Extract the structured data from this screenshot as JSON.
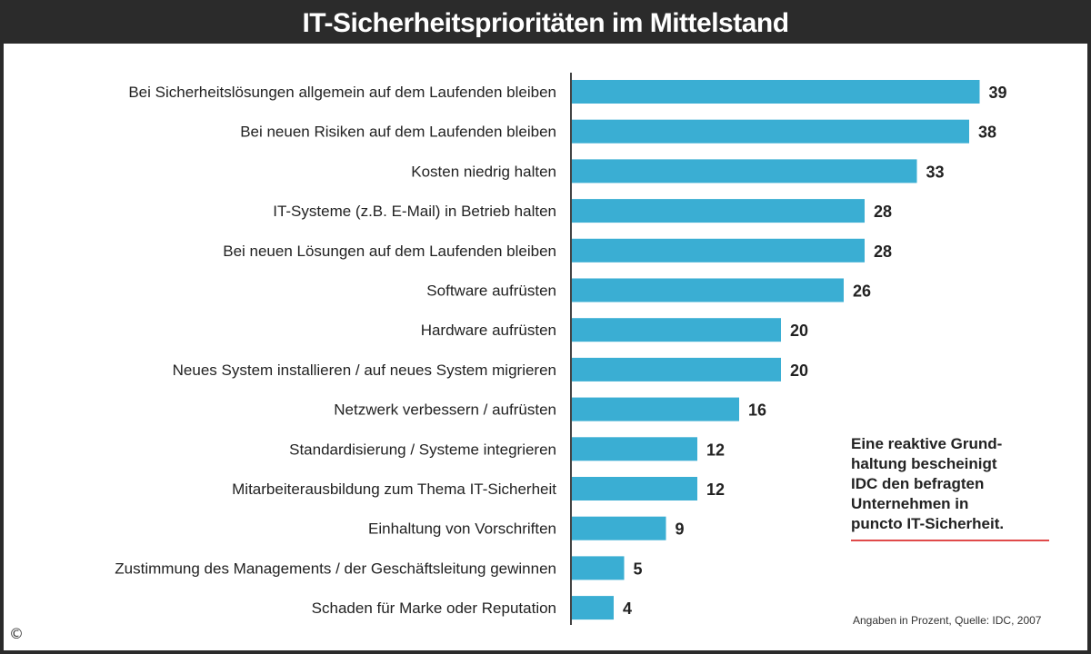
{
  "chart_data": {
    "type": "bar",
    "orientation": "horizontal",
    "title": "IT-Sicherheitsprioritäten im Mittelstand",
    "categories": [
      "Bei Sicherheitslösungen allgemein auf dem Laufenden bleiben",
      "Bei neuen Risiken auf dem Laufenden bleiben",
      "Kosten niedrig halten",
      "IT-Systeme (z.B. E-Mail) in Betrieb halten",
      "Bei neuen Lösungen auf dem Laufenden bleiben",
      "Software aufrüsten",
      "Hardware aufrüsten",
      "Neues System installieren / auf neues System migrieren",
      "Netzwerk verbessern / aufrüsten",
      "Standardisierung / Systeme integrieren",
      "Mitarbeiterausbildung zum Thema IT-Sicherheit",
      "Einhaltung von Vorschriften",
      "Zustimmung des Managements / der Geschäftsleitung gewinnen",
      "Schaden für Marke oder Reputation"
    ],
    "values": [
      39,
      38,
      33,
      28,
      28,
      26,
      20,
      20,
      16,
      12,
      12,
      9,
      5,
      4
    ],
    "xlim": [
      0,
      40
    ],
    "grid": false,
    "legend": "none",
    "bar_color": "#3aaed3",
    "annotation": "Eine reaktive Grund- haltung bescheinigt IDC den befragten Unternehmen in puncto IT-Sicherheit.",
    "source": "Angaben in Prozent, Quelle: IDC, 2007"
  },
  "note_lines": [
    "Eine reaktive Grund-",
    "haltung bescheinigt",
    "IDC den befragten",
    "Unternehmen in",
    "puncto IT-Sicherheit."
  ],
  "copyright": "©",
  "colors": {
    "title_bg": "#2b2b2b",
    "bar": "#3aaed3",
    "note_underline": "#e04a4a"
  }
}
